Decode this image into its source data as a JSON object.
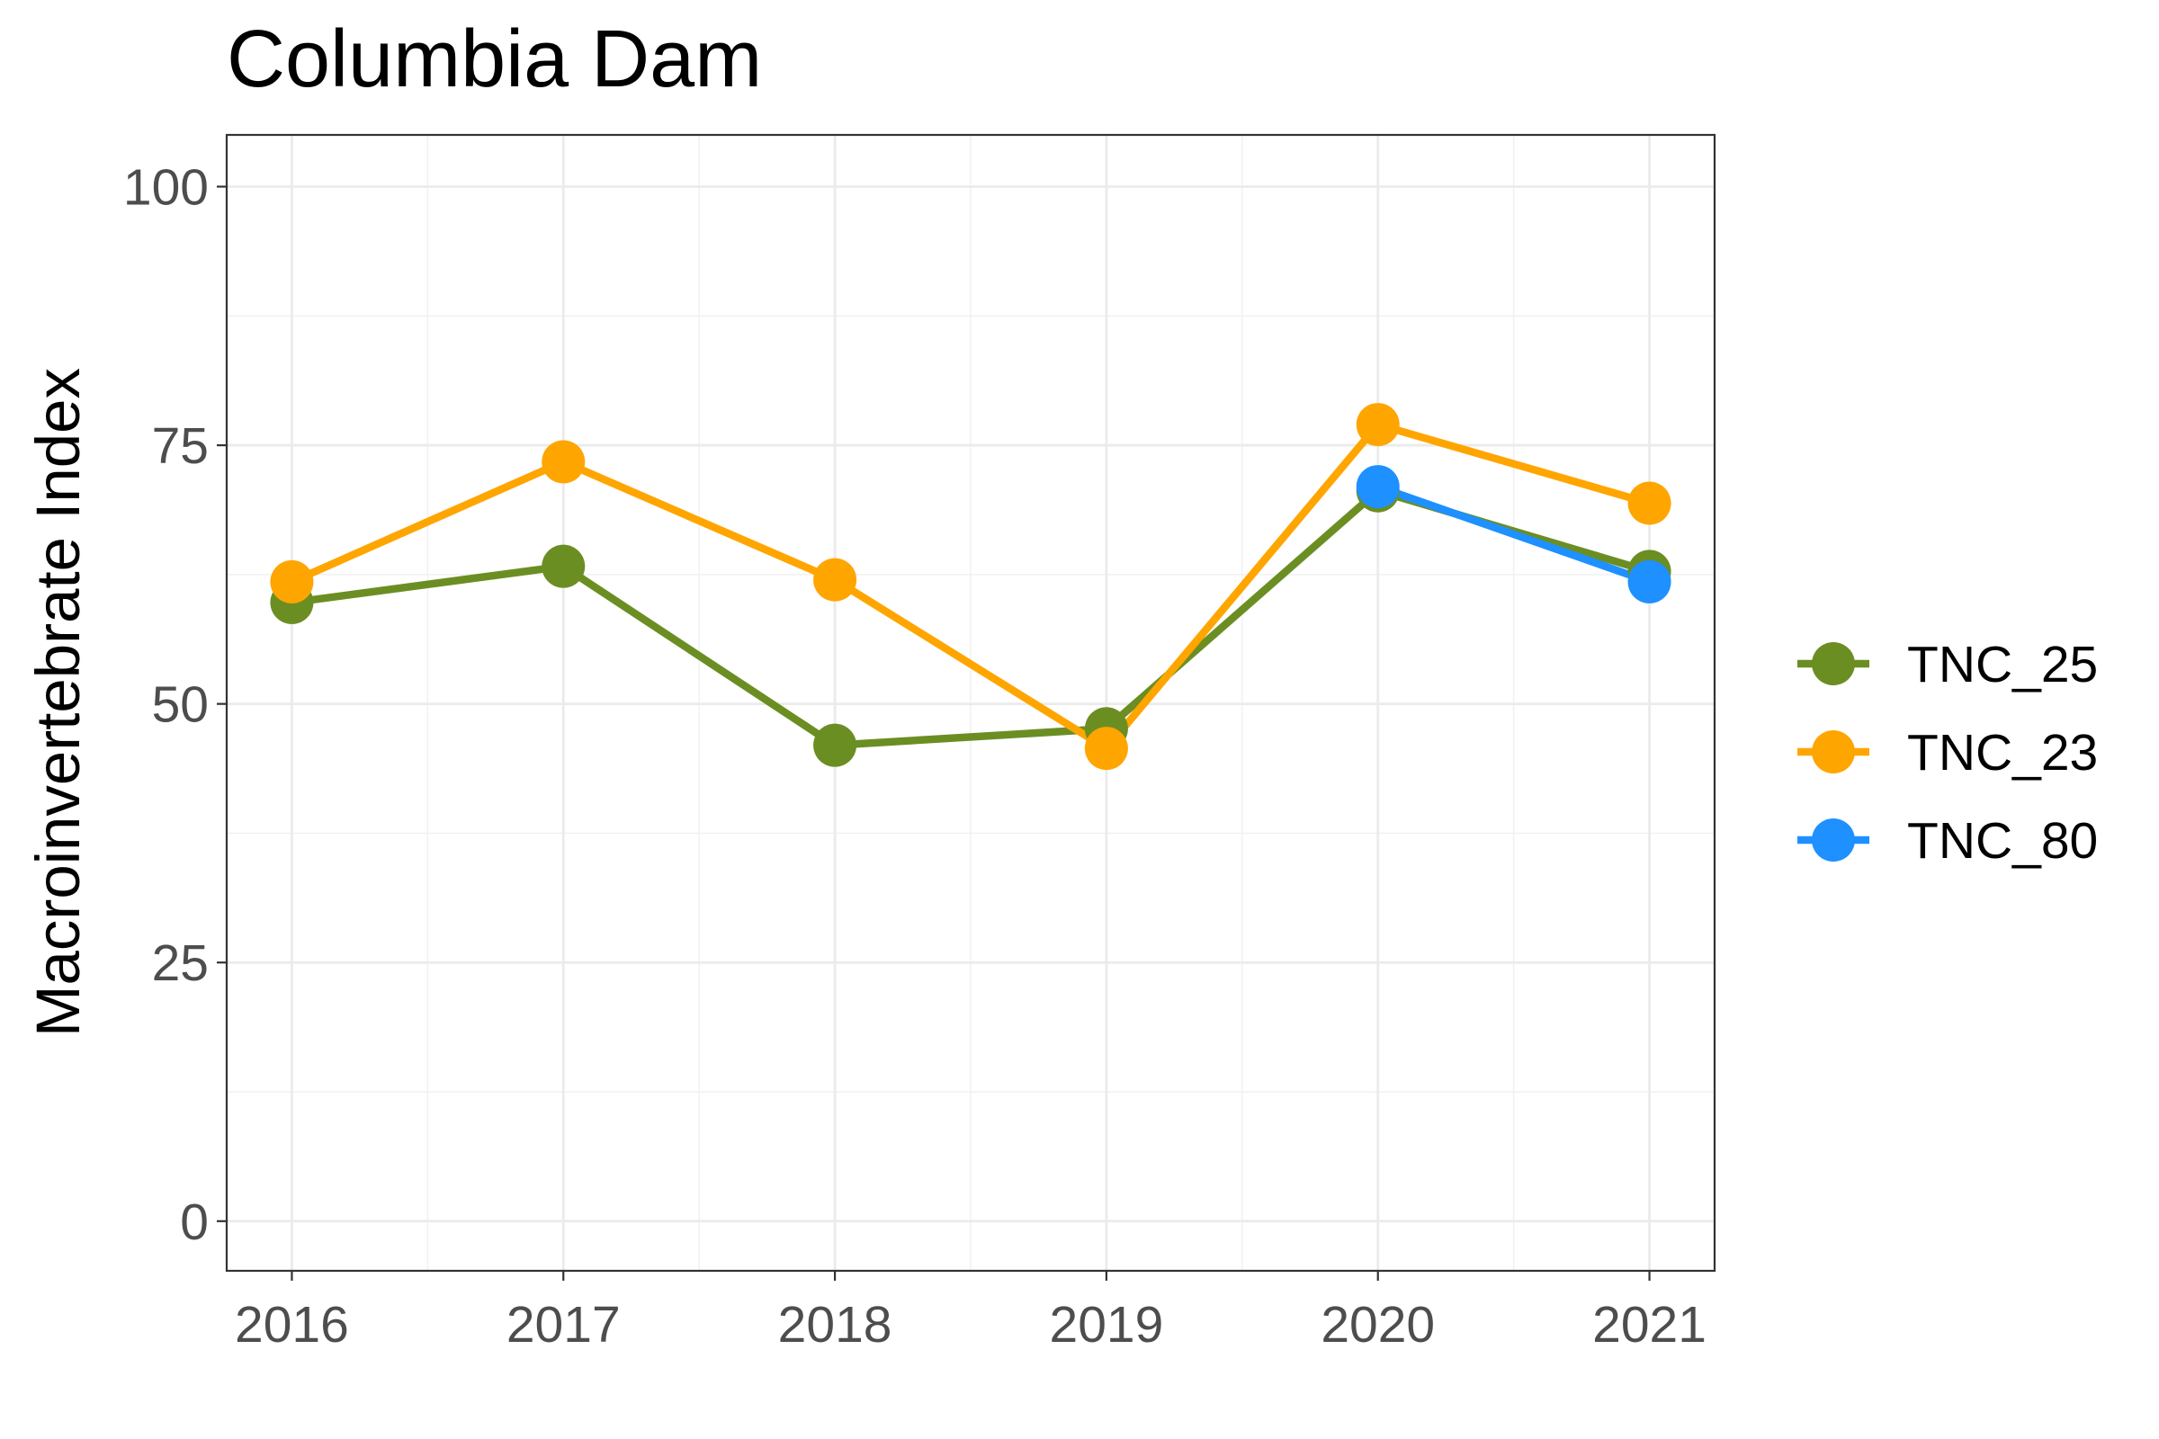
{
  "chart_data": {
    "type": "line",
    "title": "Columbia Dam",
    "xlabel": "",
    "ylabel": "Macroinvertebrate Index",
    "x": [
      2016,
      2017,
      2018,
      2019,
      2020,
      2021
    ],
    "x_tick_labels": [
      "2016",
      "2017",
      "2018",
      "2019",
      "2020",
      "2021"
    ],
    "xlim": [
      2015.76,
      2021.24
    ],
    "ylim": [
      -4.8,
      105
    ],
    "y_ticks": [
      0,
      25,
      50,
      75,
      100
    ],
    "y_tick_labels": [
      "0",
      "25",
      "50",
      "75",
      "100"
    ],
    "grid": true,
    "legend_position": "right",
    "series": [
      {
        "name": "TNC_25",
        "color": "#6B8E23",
        "x": [
          2016,
          2017,
          2018,
          2019,
          2020,
          2021
        ],
        "values": [
          59.8,
          63.3,
          46,
          47.6,
          70.6,
          62.8
        ]
      },
      {
        "name": "TNC_23",
        "color": "#FFA500",
        "x": [
          2016,
          2017,
          2018,
          2019,
          2020,
          2021
        ],
        "values": [
          61.8,
          73.4,
          62,
          45.7,
          77,
          69.4
        ]
      },
      {
        "name": "TNC_80",
        "color": "#1E90FF",
        "x": [
          2020,
          2021
        ],
        "values": [
          71,
          61.8
        ]
      }
    ]
  }
}
